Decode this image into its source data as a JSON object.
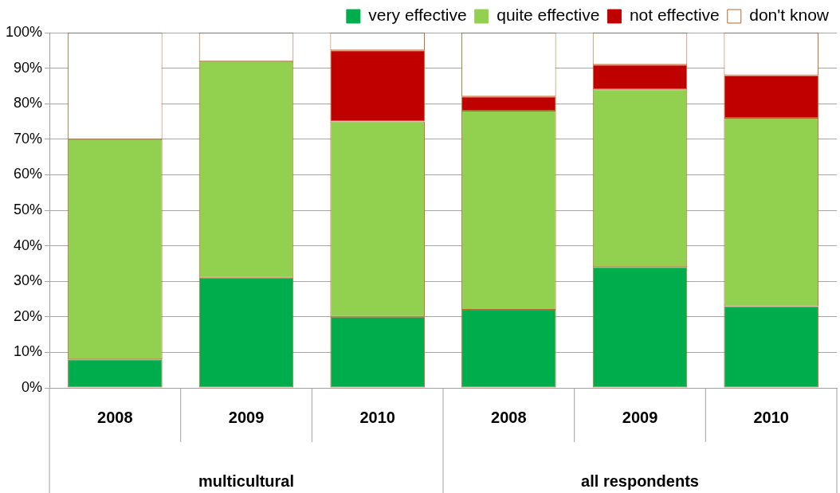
{
  "chart_data": {
    "type": "bar",
    "stacked": true,
    "categories": [
      "2008",
      "2009",
      "2010",
      "2008",
      "2009",
      "2010"
    ],
    "series": [
      {
        "name": "very effective",
        "color": "#00ad4d",
        "values": [
          8,
          31,
          20,
          22,
          34,
          23
        ]
      },
      {
        "name": "quite effective",
        "color": "#92d050",
        "values": [
          62,
          61,
          55,
          56,
          50,
          53
        ]
      },
      {
        "name": "not effective",
        "color": "#c00000",
        "values": [
          0,
          0,
          20,
          4,
          7,
          12
        ]
      },
      {
        "name": "don't know",
        "color": "#ffffff",
        "values": [
          30,
          8,
          5,
          18,
          9,
          12
        ]
      }
    ],
    "ylim": [
      0,
      100
    ],
    "yticks": [
      {
        "value": 0,
        "label": "0%"
      },
      {
        "value": 10,
        "label": "10%"
      },
      {
        "value": 20,
        "label": "20%"
      },
      {
        "value": 30,
        "label": "30%"
      },
      {
        "value": 40,
        "label": "40%"
      },
      {
        "value": 50,
        "label": "50%"
      },
      {
        "value": 60,
        "label": "60%"
      },
      {
        "value": 70,
        "label": "70%"
      },
      {
        "value": 80,
        "label": "80%"
      },
      {
        "value": 90,
        "label": "90%"
      },
      {
        "value": 100,
        "label": "100%"
      }
    ],
    "annotations": [
      "multicultural",
      "all respondents"
    ],
    "grid": "y",
    "legend": "top right"
  }
}
